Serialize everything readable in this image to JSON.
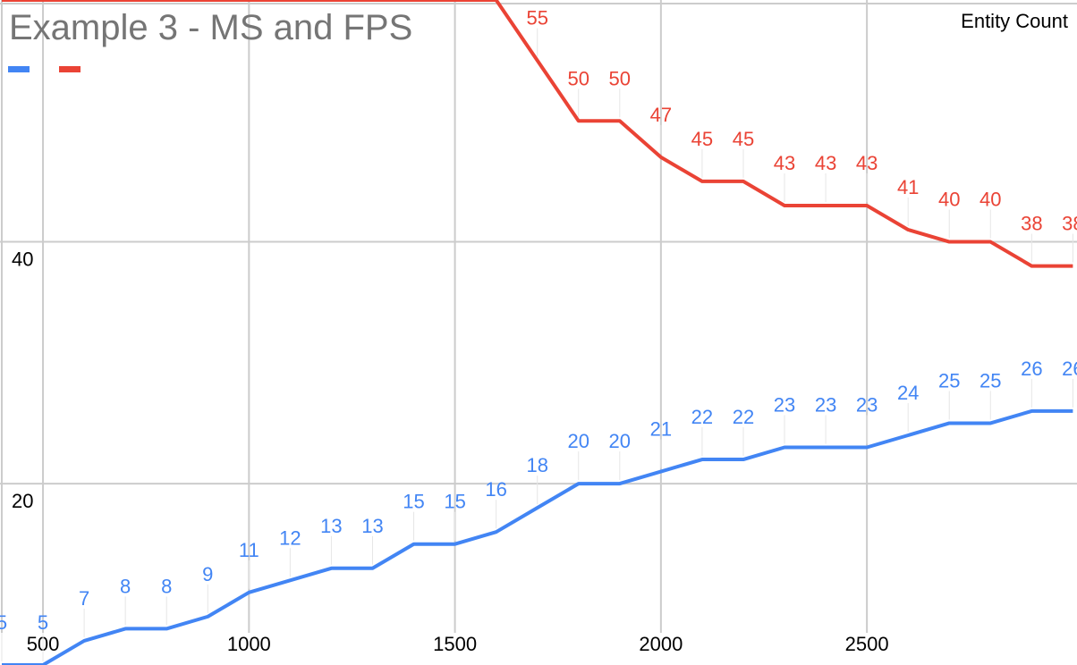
{
  "chart_data": {
    "type": "line",
    "title": "Example 3 - MS and FPS",
    "top_right_label": "Entity Count",
    "xlabel": "",
    "ylabel": "",
    "x": [
      400,
      500,
      600,
      700,
      800,
      900,
      1000,
      1100,
      1200,
      1300,
      1400,
      1500,
      1600,
      1700,
      1800,
      1900,
      2000,
      2100,
      2200,
      2300,
      2400,
      2500,
      2600,
      2700,
      2800,
      2900,
      3000
    ],
    "x_ticks": [
      500,
      1000,
      1500,
      2000,
      2500
    ],
    "y_ticks": [
      20,
      40
    ],
    "xlim": [
      400,
      3010
    ],
    "ylim": [
      5,
      60
    ],
    "grid": true,
    "legend": "top-left",
    "series": [
      {
        "color": "#4285f4",
        "values": [
          5,
          5,
          7,
          8,
          8,
          9,
          11,
          12,
          13,
          13,
          15,
          15,
          16,
          18,
          20,
          20,
          21,
          22,
          22,
          23,
          23,
          23,
          24,
          25,
          25,
          26,
          26
        ]
      },
      {
        "color": "#ea4335",
        "values": [
          60,
          60,
          60,
          60,
          60,
          60,
          60,
          60,
          60,
          60,
          60,
          60,
          60,
          55,
          50,
          50,
          47,
          45,
          45,
          43,
          43,
          43,
          41,
          40,
          40,
          38,
          38
        ]
      }
    ]
  }
}
